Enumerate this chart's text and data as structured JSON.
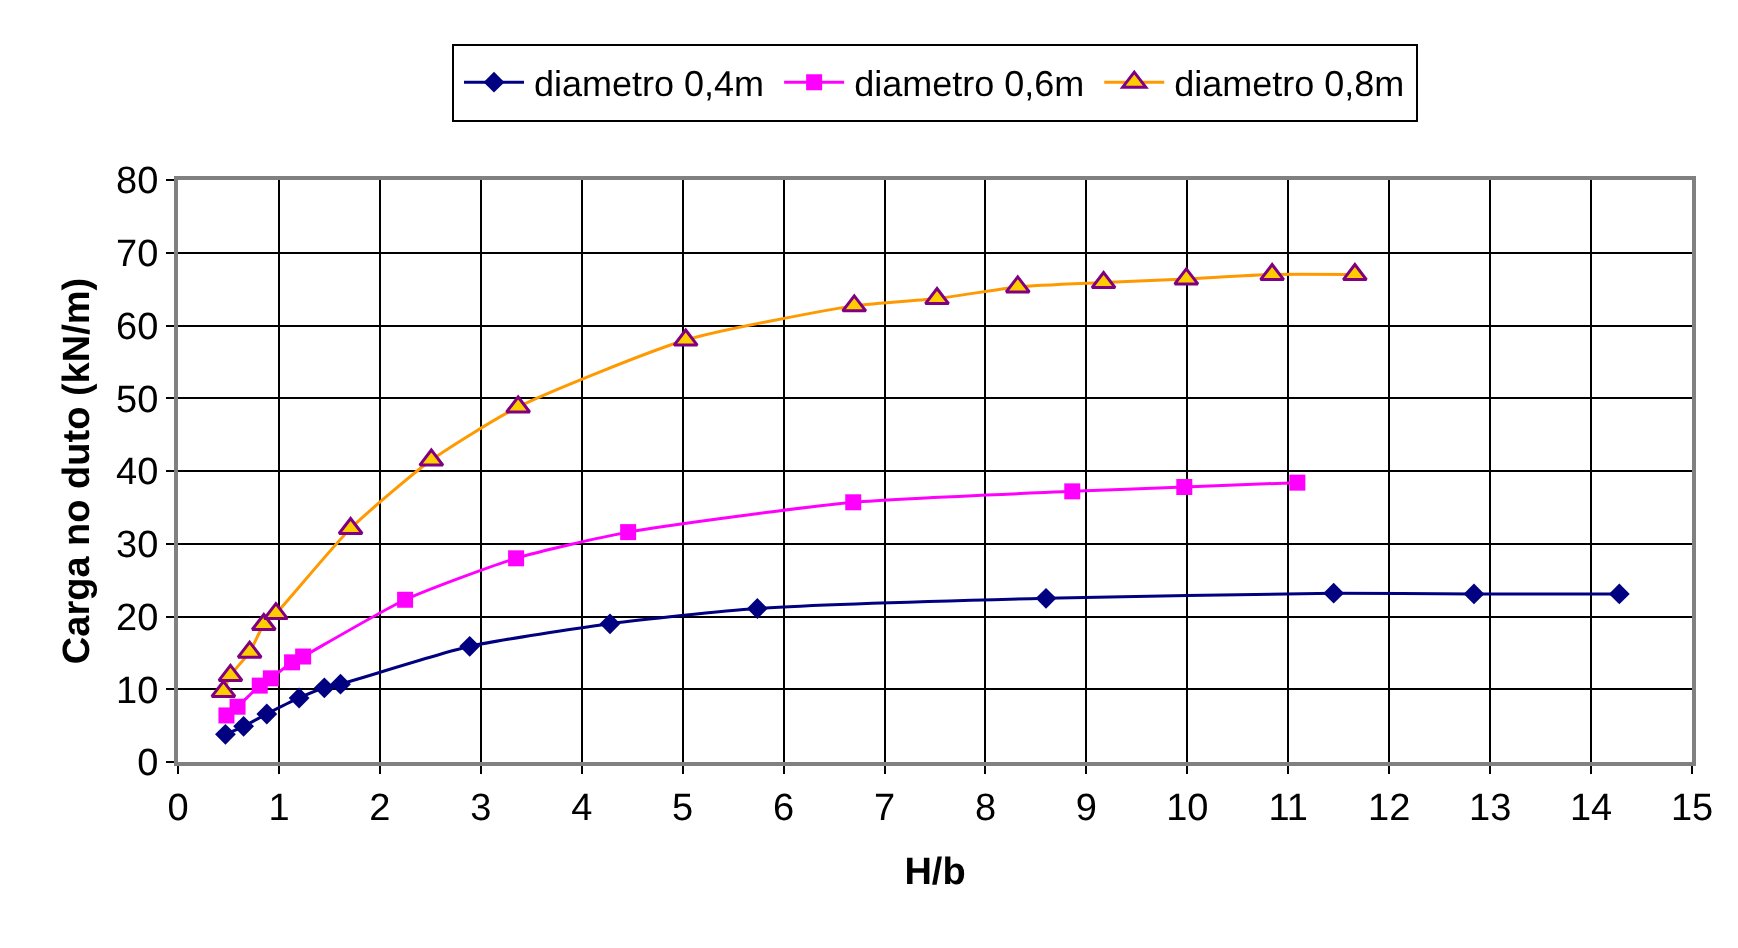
{
  "chart_data": {
    "type": "line",
    "xlabel": "H/b",
    "ylabel": "Carga no duto (kN/m)",
    "xlim": [
      0,
      15
    ],
    "xticks": [
      0,
      1,
      2,
      3,
      4,
      5,
      6,
      7,
      8,
      9,
      10,
      11,
      12,
      13,
      14,
      15
    ],
    "ylim": [
      0,
      80
    ],
    "yticks": [
      0,
      10,
      20,
      30,
      40,
      50,
      60,
      70,
      80
    ],
    "grid": true,
    "legend": "top",
    "line_style": "solid",
    "series": [
      {
        "name": "diametro 0,4m",
        "color": "#000080",
        "marker": "diamond",
        "x": [
          0.47,
          0.65,
          0.88,
          1.2,
          1.45,
          1.61,
          2.89,
          4.28,
          5.74,
          8.6,
          11.45,
          12.84,
          14.28
        ],
        "values": [
          3.8,
          4.9,
          6.6,
          8.8,
          10.2,
          10.7,
          15.9,
          19.0,
          21.1,
          22.5,
          23.2,
          23.1,
          23.1
        ]
      },
      {
        "name": "diametro 0,6m",
        "color": "#ff00ff",
        "marker": "square",
        "x": [
          0.48,
          0.59,
          0.81,
          0.92,
          1.13,
          1.24,
          2.25,
          3.35,
          4.46,
          6.69,
          8.86,
          9.97,
          11.09
        ],
        "values": [
          6.4,
          7.6,
          10.5,
          11.5,
          13.7,
          14.5,
          22.3,
          28.0,
          31.6,
          35.7,
          37.2,
          37.8,
          38.4
        ]
      },
      {
        "name": "diametro 0,8m",
        "color": "#ff9900",
        "marker": "triangle",
        "x": [
          0.45,
          0.52,
          0.71,
          0.85,
          0.97,
          1.71,
          2.51,
          3.37,
          5.03,
          6.7,
          7.52,
          8.32,
          9.17,
          9.99,
          10.84,
          11.66
        ],
        "values": [
          9.7,
          11.9,
          15.1,
          18.9,
          20.4,
          32.1,
          41.5,
          48.8,
          58.0,
          62.7,
          63.7,
          65.3,
          65.9,
          66.4,
          67.0,
          67.0
        ]
      }
    ]
  }
}
